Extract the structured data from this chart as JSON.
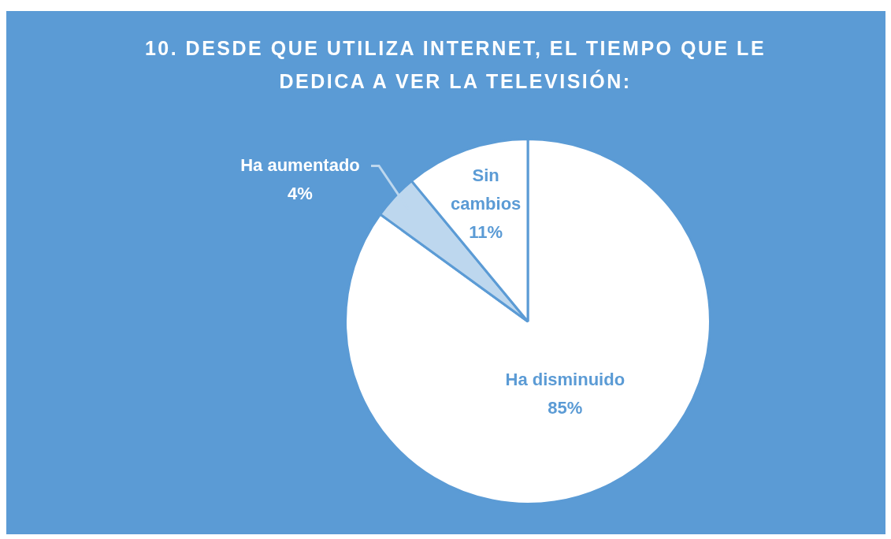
{
  "chart_data": {
    "type": "pie",
    "title": "10. DESDE QUE UTILIZA INTERNET, EL TIEMPO QUE LE DEDICA A VER LA TELEVISIÓN:",
    "categories": [
      "Ha disminuido",
      "Ha aumentado",
      "Sin cambios"
    ],
    "values": [
      85,
      4,
      11
    ],
    "value_labels": [
      "85%",
      "4%",
      "11%"
    ],
    "colors": [
      "#ffffff",
      "#bdd7ee",
      "#ffffff"
    ],
    "legend": false
  }
}
